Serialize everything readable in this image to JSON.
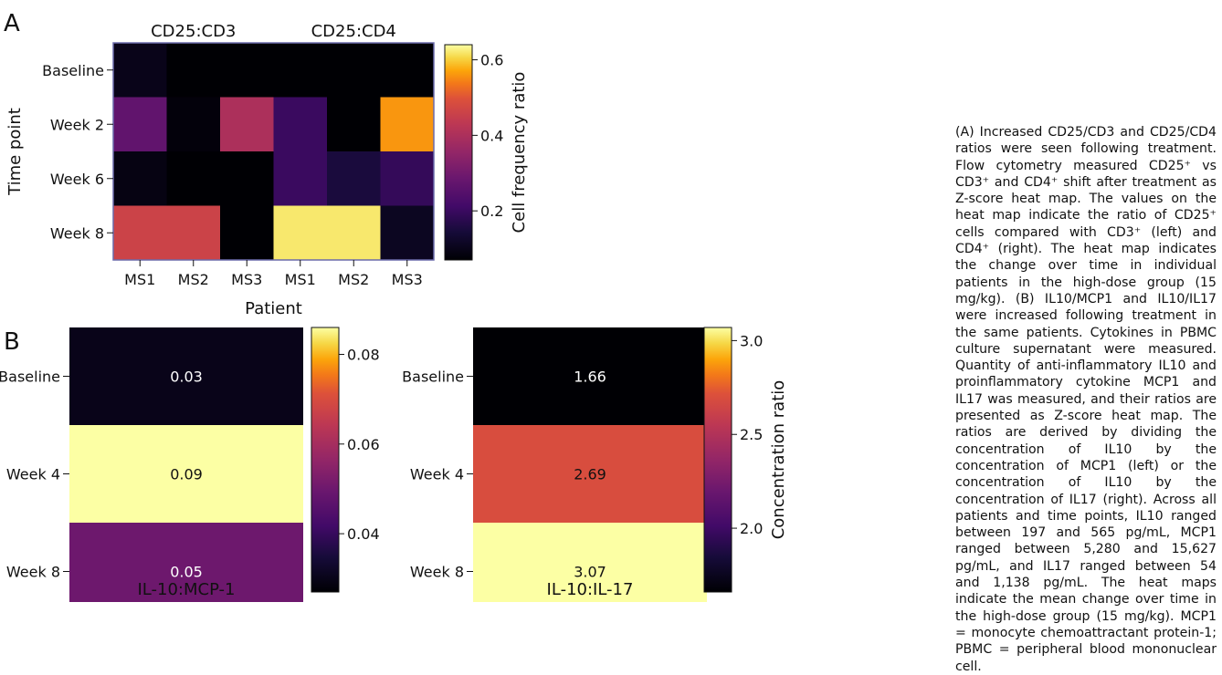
{
  "figure": {
    "panel_a_label": "A",
    "panel_b_label": "B"
  },
  "chart_data": [
    {
      "type": "heatmap",
      "panel": "A",
      "group_labels": [
        "CD25:CD3",
        "CD25:CD4"
      ],
      "rows": [
        "Baseline",
        "Week 2",
        "Week 6",
        "Week 8"
      ],
      "columns": [
        "MS1",
        "MS2",
        "MS3",
        "MS1",
        "MS2",
        "MS3"
      ],
      "values": [
        [
          0.1,
          0.01,
          0.04,
          0.04,
          0.04,
          0.05
        ],
        [
          0.27,
          0.08,
          0.4,
          0.2,
          0.03,
          0.56
        ],
        [
          0.09,
          0.04,
          0.04,
          0.2,
          0.15,
          0.19
        ],
        [
          0.46,
          0.46,
          0.04,
          0.62,
          0.62,
          0.11
        ]
      ],
      "xlabel": "Patient",
      "ylabel": "Time point",
      "colorbar_label": "Cell frequency ratio",
      "colorbar_ticks": [
        "0.2",
        "0.4",
        "0.6"
      ],
      "colorbar_range": [
        0.07,
        0.64
      ],
      "colormap": "inferno",
      "frame_color": "#6b6bab"
    },
    {
      "type": "heatmap",
      "panel": "B-left",
      "rows": [
        "Baseline",
        "Week 4",
        "Week 8"
      ],
      "values": [
        0.03,
        0.09,
        0.05
      ],
      "value_labels": [
        "0.03",
        "0.09",
        "0.05"
      ],
      "xlabel": "IL-10:MCP-1",
      "colorbar_ticks": [
        "0.04",
        "0.06",
        "0.08"
      ],
      "colorbar_range": [
        0.027,
        0.086
      ],
      "colormap": "inferno"
    },
    {
      "type": "heatmap",
      "panel": "B-right",
      "rows": [
        "Baseline",
        "Week 4",
        "Week 8"
      ],
      "values": [
        1.66,
        2.69,
        3.07
      ],
      "value_labels": [
        "1.66",
        "2.69",
        "3.07"
      ],
      "xlabel": "IL-10:IL-17",
      "colorbar_label": "Concentration ratio",
      "colorbar_ticks": [
        "2.0",
        "2.5",
        "3.0"
      ],
      "colorbar_range": [
        1.66,
        3.07
      ],
      "colormap": "inferno"
    }
  ],
  "caption": "(A) Increased CD25/CD3 and CD25/CD4 ratios were seen following treatment. Flow cytometry measured CD25⁺ vs CD3⁺ and CD4⁺ shift after treatment as Z-score heat map. The values on the heat map indicate the ratio of CD25⁺ cells compared with CD3⁺ (left) and CD4⁺ (right). The heat map indicates the change over time in individual patients in the high-dose group (15 mg/kg). (B) IL10/MCP1 and IL10/IL17 were increased following treatment in the same patients. Cytokines in PBMC culture supernatant were measured. Quantity of anti-inflammatory IL10 and proinflammatory cytokine MCP1 and IL17 was measured, and their ratios are presented as Z-score heat map. The ratios are derived by dividing the concentration of IL10 by the concentration of MCP1 (left) or the concentration of IL10 by the concentration of IL17 (right). Across all patients and time points, IL10 ranged between 197 and 565 pg/mL, MCP1 ranged between 5,280 and 15,627 pg/mL, and IL17 ranged between 54 and 1,138 pg/mL. The heat maps indicate the mean change over time in the high-dose group (15 mg/kg). MCP1 = monocyte chemoattractant protein-1; PBMC = peripheral blood mononuclear cell."
}
